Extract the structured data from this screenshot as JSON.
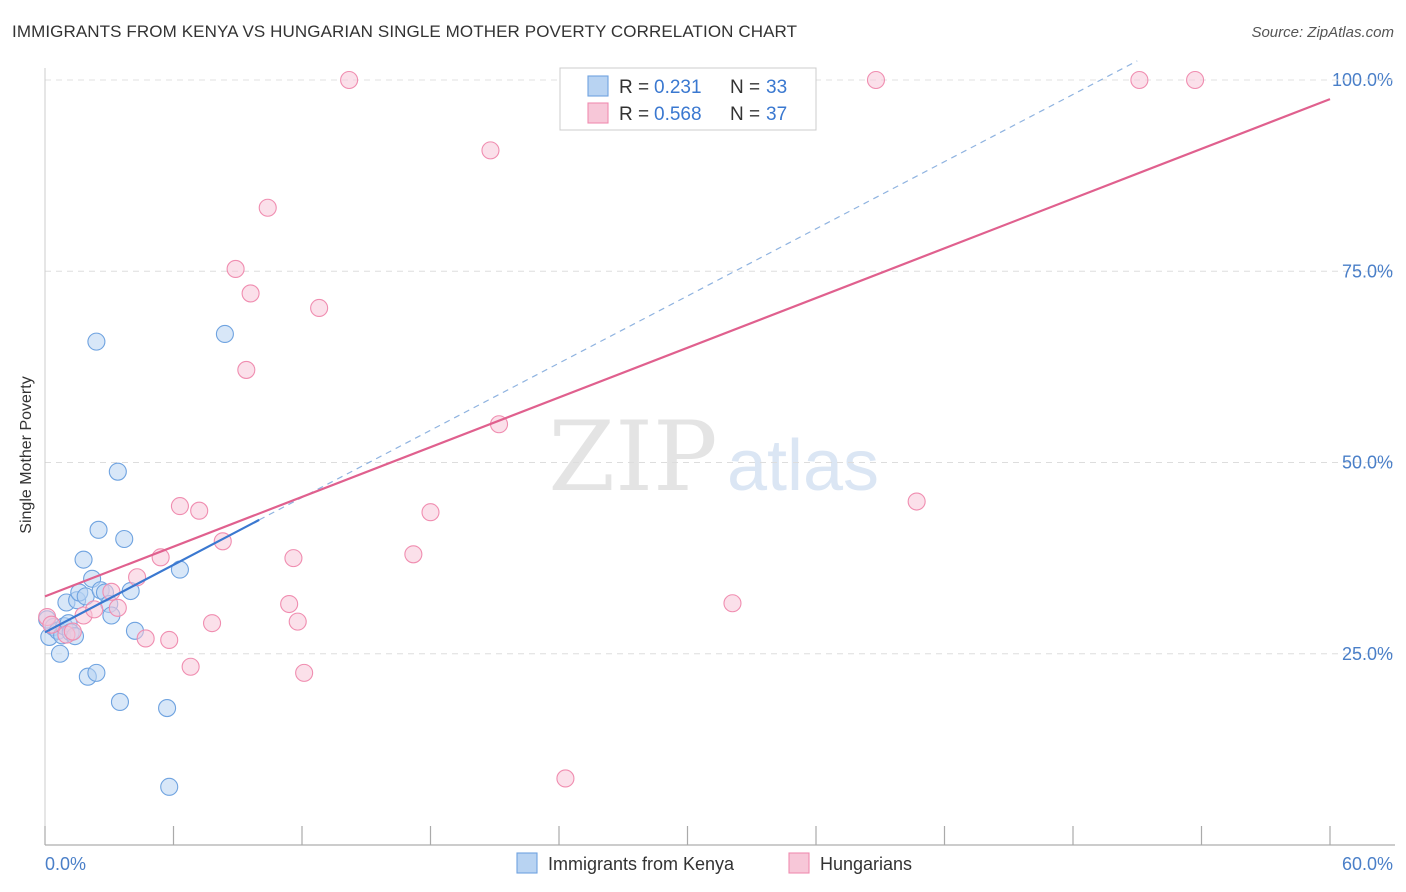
{
  "title": "IMMIGRANTS FROM KENYA VS HUNGARIAN SINGLE MOTHER POVERTY CORRELATION CHART",
  "source": "Source: ZipAtlas.com",
  "watermark": {
    "zip": "ZIP",
    "atlas": "atlas"
  },
  "chart_data": {
    "type": "scatter",
    "title": "IMMIGRANTS FROM KENYA VS HUNGARIAN SINGLE MOTHER POVERTY CORRELATION CHART",
    "xlabel": "",
    "ylabel": "Single Mother Poverty",
    "xlim": [
      0,
      60
    ],
    "ylim": [
      0,
      100
    ],
    "x_ticks_labeled": [
      "0.0%",
      "60.0%"
    ],
    "y_ticks": [
      25,
      50,
      75,
      100
    ],
    "y_tick_labels": [
      "25.0%",
      "50.0%",
      "75.0%",
      "100.0%"
    ],
    "grid": true,
    "legend_position": "top-center",
    "series": [
      {
        "name": "Immigrants from Kenya",
        "color": "#6fa3e0",
        "fill": "#b8d3f2",
        "r": "0.231",
        "n": "33",
        "trend": {
          "type": "solid",
          "x": [
            0,
            10
          ],
          "y": [
            27.8,
            42.5
          ],
          "dashed_x": [
            10,
            51
          ],
          "dashed_y": [
            42.5,
            102.5
          ],
          "line_color": "#3a78d0"
        },
        "points": [
          [
            0.1,
            29.5
          ],
          [
            0.2,
            27.2
          ],
          [
            0.4,
            28.5
          ],
          [
            0.6,
            28.0
          ],
          [
            0.7,
            25.0
          ],
          [
            0.8,
            27.4
          ],
          [
            0.9,
            28.6
          ],
          [
            1.0,
            31.7
          ],
          [
            1.1,
            29.0
          ],
          [
            1.2,
            27.8
          ],
          [
            1.4,
            27.3
          ],
          [
            1.5,
            32.0
          ],
          [
            1.6,
            33.0
          ],
          [
            1.8,
            37.3
          ],
          [
            1.9,
            32.5
          ],
          [
            2.0,
            22.0
          ],
          [
            2.2,
            34.8
          ],
          [
            2.4,
            22.5
          ],
          [
            2.5,
            41.2
          ],
          [
            2.6,
            33.3
          ],
          [
            2.8,
            33.0
          ],
          [
            3.0,
            31.5
          ],
          [
            3.1,
            30.0
          ],
          [
            3.4,
            48.8
          ],
          [
            3.5,
            18.7
          ],
          [
            3.7,
            40.0
          ],
          [
            4.0,
            33.2
          ],
          [
            4.2,
            28.0
          ],
          [
            5.7,
            17.9
          ],
          [
            5.8,
            7.6
          ],
          [
            6.3,
            36.0
          ],
          [
            8.4,
            66.8
          ],
          [
            2.4,
            65.8
          ]
        ]
      },
      {
        "name": "Hungarians",
        "color": "#f08db0",
        "fill": "#f7c7d8",
        "r": "0.568",
        "n": "37",
        "trend": {
          "type": "solid",
          "x": [
            0,
            60
          ],
          "y": [
            32.5,
            97.5
          ],
          "line_color": "#e0608e"
        },
        "points": [
          [
            0.1,
            29.8
          ],
          [
            0.3,
            28.8
          ],
          [
            1.0,
            27.5
          ],
          [
            1.3,
            27.9
          ],
          [
            1.8,
            30.0
          ],
          [
            2.3,
            30.8
          ],
          [
            3.1,
            33.1
          ],
          [
            3.4,
            31.0
          ],
          [
            4.3,
            35.0
          ],
          [
            4.7,
            27.0
          ],
          [
            5.4,
            37.6
          ],
          [
            5.8,
            26.8
          ],
          [
            6.3,
            44.3
          ],
          [
            6.8,
            23.3
          ],
          [
            7.2,
            43.7
          ],
          [
            7.8,
            29.0
          ],
          [
            8.3,
            39.7
          ],
          [
            8.9,
            75.3
          ],
          [
            9.4,
            62.1
          ],
          [
            9.6,
            72.1
          ],
          [
            10.4,
            83.3
          ],
          [
            11.4,
            31.5
          ],
          [
            11.6,
            37.5
          ],
          [
            11.8,
            29.2
          ],
          [
            12.1,
            22.5
          ],
          [
            12.8,
            70.2
          ],
          [
            14.2,
            100.0
          ],
          [
            17.2,
            38.0
          ],
          [
            18.0,
            43.5
          ],
          [
            20.8,
            90.8
          ],
          [
            21.2,
            55.0
          ],
          [
            24.3,
            8.7
          ],
          [
            32.1,
            31.6
          ],
          [
            38.8,
            100.0
          ],
          [
            40.7,
            44.9
          ],
          [
            51.1,
            100.0
          ],
          [
            53.7,
            100.0
          ]
        ]
      }
    ]
  },
  "legend_box": {
    "rows": [
      {
        "r_label": "R = ",
        "r_value": "0.231",
        "n_label": "N = ",
        "n_value": "33"
      },
      {
        "r_label": "R = ",
        "r_value": "0.568",
        "n_label": "N = ",
        "n_value": "37"
      }
    ]
  },
  "bottom_legend": [
    "Immigrants from Kenya",
    "Hungarians"
  ]
}
